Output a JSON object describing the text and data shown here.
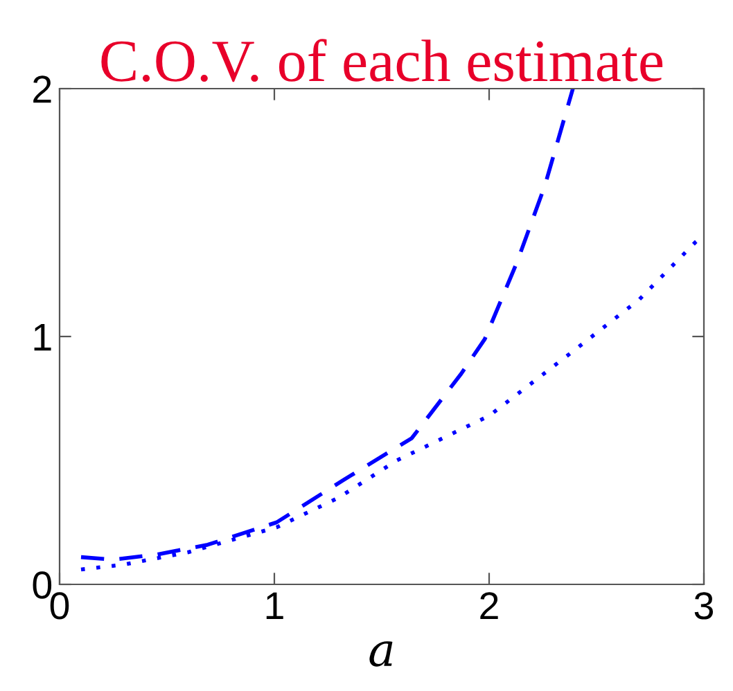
{
  "chart_data": {
    "type": "line",
    "title": "C.O.V. of each estimate",
    "xlabel": "a",
    "xlim": [
      0,
      3
    ],
    "ylim": [
      0,
      2
    ],
    "xticks": [
      0,
      1,
      2,
      3
    ],
    "yticks": [
      0,
      1,
      2
    ],
    "grid": false,
    "legend": false,
    "marker": "none",
    "series": [
      {
        "color": "#0000ff",
        "line_style": "dashed",
        "x": [
          0.1,
          0.25,
          0.45,
          0.69,
          1.01,
          1.32,
          1.64,
          1.87,
          1.98,
          2.13,
          2.26,
          2.39
        ],
        "values": [
          0.11,
          0.1,
          0.12,
          0.16,
          0.25,
          0.42,
          0.59,
          0.85,
          0.99,
          1.3,
          1.61,
          2.0
        ]
      },
      {
        "color": "#0000ff",
        "line_style": "dotted",
        "x": [
          0.1,
          0.3,
          0.6,
          1.01,
          1.3,
          1.57,
          2.0,
          2.39,
          2.7,
          2.96,
          3.0
        ],
        "values": [
          0.06,
          0.08,
          0.13,
          0.23,
          0.35,
          0.5,
          0.68,
          0.94,
          1.15,
          1.38,
          1.41
        ]
      }
    ]
  }
}
